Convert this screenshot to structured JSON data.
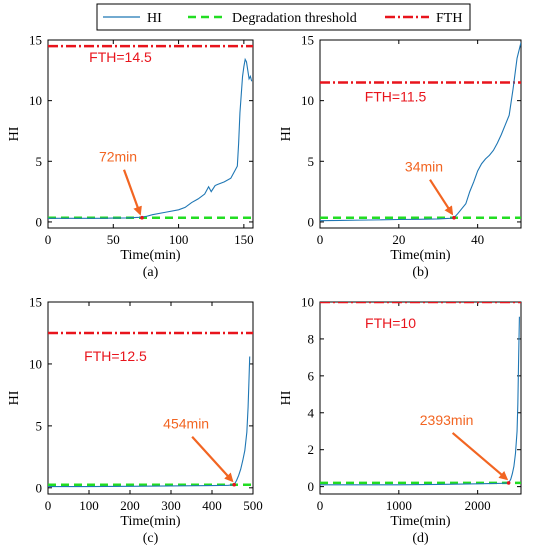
{
  "colors": {
    "hi": "#1f77b4",
    "threshold": "#22dd22",
    "fth": "#e8141c",
    "annotation": "#f26522",
    "marker": "#e8141c"
  },
  "legend": {
    "entries": [
      {
        "key": "hi",
        "label": "HI"
      },
      {
        "key": "threshold",
        "label": "Degradation threshold"
      },
      {
        "key": "fth",
        "label": "FTH"
      }
    ]
  },
  "chart_data": [
    {
      "type": "line",
      "sublabel": "(a)",
      "xlabel": "Time(min)",
      "ylabel": "HI",
      "xlim": [
        0,
        157
      ],
      "ylim": [
        -0.5,
        15
      ],
      "xticks": [
        0,
        50,
        100,
        150
      ],
      "yticks": [
        0,
        5,
        10,
        15
      ],
      "fth_value": 14.5,
      "fth_label": "FTH=14.5",
      "threshold_value": 0.35,
      "onset_x": 72,
      "onset_label": "72min",
      "series": [
        {
          "key": "hi",
          "x": [
            0,
            10,
            20,
            30,
            40,
            50,
            60,
            70,
            75,
            80,
            90,
            100,
            105,
            110,
            115,
            120,
            123,
            125,
            128,
            130,
            135,
            140,
            143,
            145,
            146,
            147,
            148,
            149,
            150,
            151,
            152,
            153,
            154,
            155,
            156
          ],
          "y": [
            0.3,
            0.3,
            0.3,
            0.3,
            0.3,
            0.32,
            0.33,
            0.38,
            0.45,
            0.6,
            0.8,
            1.0,
            1.2,
            1.6,
            1.9,
            2.3,
            2.9,
            2.5,
            3.0,
            3.1,
            3.3,
            3.6,
            4.2,
            4.6,
            6.5,
            9.0,
            10.5,
            12.0,
            12.8,
            13.4,
            13.2,
            12.5,
            11.8,
            12.0,
            11.6
          ]
        }
      ]
    },
    {
      "type": "line",
      "sublabel": "(b)",
      "xlabel": "Time(min)",
      "ylabel": "HI",
      "xlim": [
        0,
        51
      ],
      "ylim": [
        -0.5,
        15
      ],
      "xticks": [
        0,
        20,
        40
      ],
      "yticks": [
        0,
        5,
        10,
        15
      ],
      "fth_value": 11.5,
      "fth_label": "FTH=11.5",
      "threshold_value": 0.35,
      "onset_x": 34,
      "onset_label": "34min",
      "series": [
        {
          "key": "hi",
          "x": [
            0,
            5,
            10,
            15,
            20,
            25,
            30,
            33,
            34,
            35,
            36,
            37,
            38,
            39,
            40,
            41,
            42,
            43,
            44,
            45,
            46,
            47,
            48,
            49,
            50,
            51
          ],
          "y": [
            0.1,
            0.12,
            0.15,
            0.17,
            0.2,
            0.22,
            0.25,
            0.3,
            0.35,
            0.7,
            1.1,
            1.5,
            2.5,
            3.3,
            4.2,
            4.8,
            5.2,
            5.5,
            5.9,
            6.5,
            7.2,
            8.0,
            8.8,
            11.0,
            13.5,
            14.8
          ]
        }
      ]
    },
    {
      "type": "line",
      "sublabel": "(c)",
      "xlabel": "Time(min)",
      "ylabel": "HI",
      "xlim": [
        0,
        500
      ],
      "ylim": [
        -0.5,
        15
      ],
      "xticks": [
        0,
        100,
        200,
        300,
        400,
        500
      ],
      "yticks": [
        0,
        5,
        10,
        15
      ],
      "fth_value": 12.5,
      "fth_label": "FTH=12.5",
      "threshold_value": 0.25,
      "onset_x": 454,
      "onset_label": "454min",
      "series": [
        {
          "key": "hi",
          "x": [
            0,
            100,
            200,
            300,
            400,
            440,
            454,
            460,
            465,
            470,
            475,
            480,
            485,
            488,
            490,
            492
          ],
          "y": [
            0.1,
            0.1,
            0.12,
            0.15,
            0.18,
            0.2,
            0.25,
            0.6,
            1.0,
            1.5,
            2.2,
            3.0,
            4.5,
            6.5,
            8.5,
            10.6
          ]
        }
      ]
    },
    {
      "type": "line",
      "sublabel": "(d)",
      "xlabel": "Time(min)",
      "ylabel": "HI",
      "xlim": [
        0,
        2550
      ],
      "ylim": [
        -0.4,
        10
      ],
      "xticks": [
        0,
        1000,
        2000
      ],
      "yticks": [
        0,
        2,
        4,
        6,
        8,
        10
      ],
      "fth_value": 10,
      "fth_label": "FTH=10",
      "threshold_value": 0.2,
      "onset_x": 2393,
      "onset_label": "2393min",
      "series": [
        {
          "key": "hi",
          "x": [
            0,
            500,
            1000,
            1500,
            2000,
            2300,
            2393,
            2420,
            2440,
            2460,
            2480,
            2500,
            2510,
            2520,
            2530
          ],
          "y": [
            0.1,
            0.1,
            0.1,
            0.12,
            0.15,
            0.18,
            0.2,
            0.4,
            0.7,
            1.1,
            1.8,
            3.0,
            4.5,
            7.0,
            9.2
          ]
        }
      ]
    }
  ]
}
